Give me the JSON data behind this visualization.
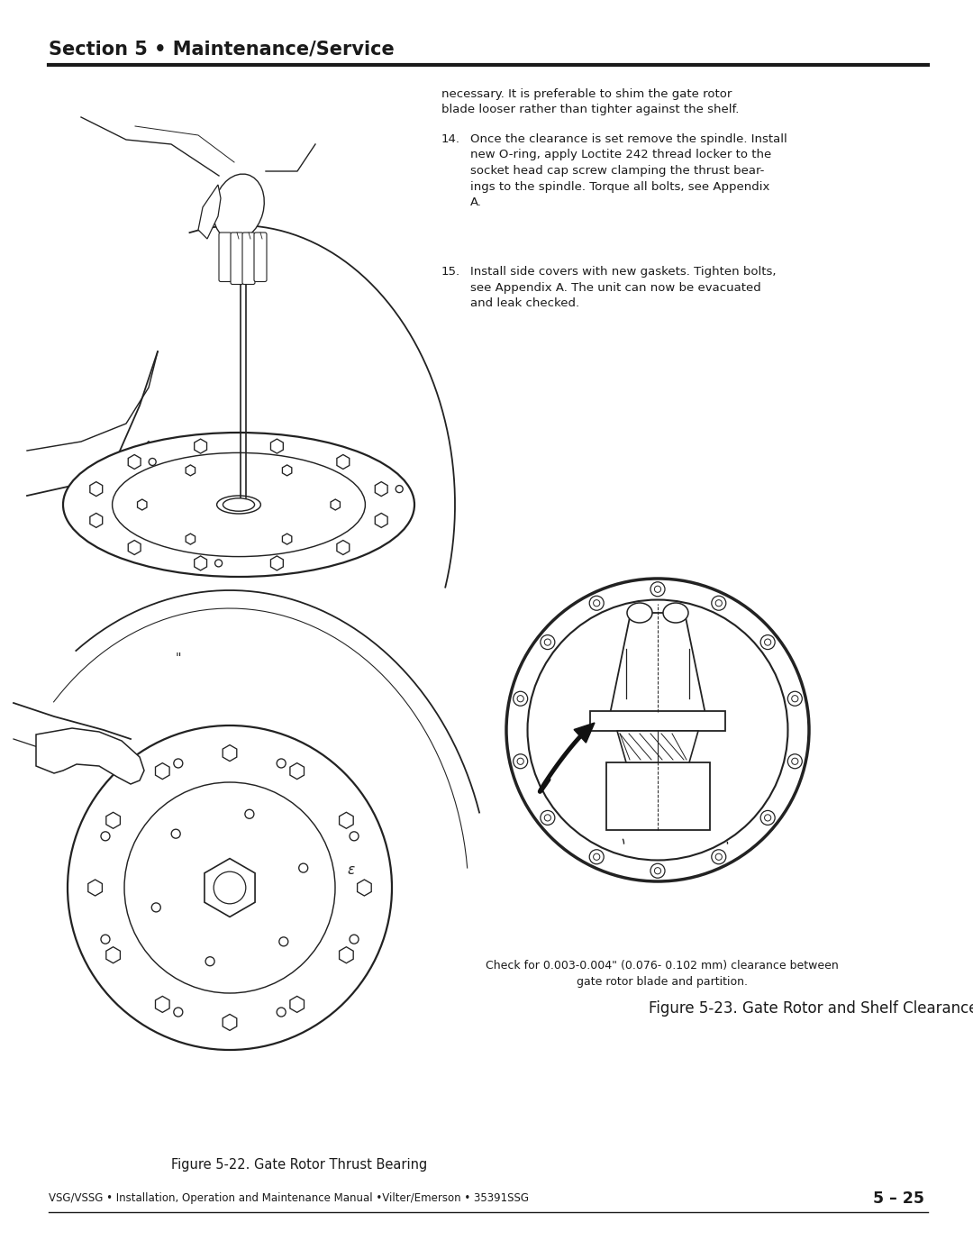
{
  "page_bg": "#ffffff",
  "header_title": "Section 5 • Maintenance/Service",
  "header_line_color": "#1a1a1a",
  "footer_text_left": "VSG/VSSG • Installation, Operation and Maintenance Manual •Vilter/Emerson • 35391SSG",
  "footer_text_right": "5 – 25",
  "fig22_caption": "Figure 5-22. Gate Rotor Thrust Bearing",
  "fig23_caption": "Figure 5-23. Gate Rotor and Shelf Clearance",
  "fig23_sub_caption": "Check for 0.003-0.004\" (0.076- 0.102 mm) clearance between\ngate rotor blade and partition.",
  "para0": "necessary. It is preferable to shim the gate rotor\nblade looser rather than tighter against the shelf.",
  "para14_label": "14.",
  "para14_text": "Once the clearance is set remove the spindle. Install\nnew O-ring, apply Loctite 242 thread locker to the\nsocket head cap screw clamping the thrust bear-\nings to the spindle. Torque all bolts, see Appendix\nA.",
  "para15_label": "15.",
  "para15_text": "Install side covers with new gaskets. Tighten bolts,\nsee Appendix A. The unit can now be evacuated\nand leak checked.",
  "text_fontsize": 9.5,
  "caption_fontsize": 12,
  "sub_caption_fontsize": 9.0,
  "header_fontsize": 15,
  "footer_fontsize": 8.5,
  "text_color": "#1a1a1a",
  "line_color": "#222222",
  "line_lw": 1.2,
  "fig23_bolts": 14
}
